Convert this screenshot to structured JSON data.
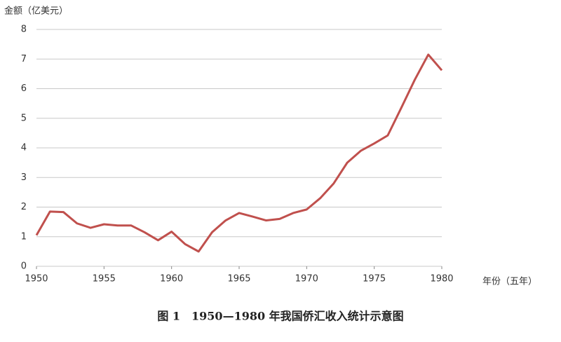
{
  "chart_data": {
    "type": "line",
    "y_label": "金额（亿美元）",
    "x_label": "年份（五年）",
    "caption": "图 1　1950—1980 年我国侨汇收入统计示意图",
    "x": [
      1950,
      1951,
      1952,
      1953,
      1954,
      1955,
      1956,
      1957,
      1958,
      1959,
      1960,
      1961,
      1962,
      1963,
      1964,
      1965,
      1966,
      1967,
      1968,
      1969,
      1970,
      1971,
      1972,
      1973,
      1974,
      1975,
      1976,
      1977,
      1978,
      1979,
      1980
    ],
    "values": [
      1.05,
      1.85,
      1.83,
      1.45,
      1.3,
      1.42,
      1.38,
      1.38,
      1.15,
      0.88,
      1.17,
      0.75,
      0.5,
      1.15,
      1.55,
      1.8,
      1.68,
      1.55,
      1.6,
      1.8,
      1.92,
      2.3,
      2.8,
      3.5,
      3.9,
      4.15,
      4.42,
      5.35,
      6.3,
      7.15,
      6.62
    ],
    "color": "#c0504d",
    "xlim": [
      1950,
      1980
    ],
    "xticks": [
      1950,
      1955,
      1960,
      1965,
      1970,
      1975,
      1980
    ],
    "ylim": [
      0,
      8
    ],
    "yticks": [
      0,
      1,
      2,
      3,
      4,
      5,
      6,
      7,
      8
    ],
    "grid": true
  }
}
